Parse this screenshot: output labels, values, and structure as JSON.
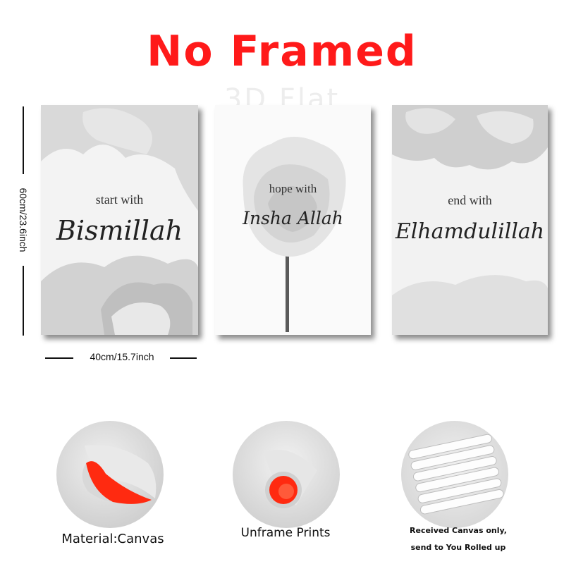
{
  "header": {
    "title": "No Framed",
    "watermark": "3D Flat"
  },
  "colors": {
    "title": "#ff1a1a",
    "canvas_back": "#ff2a10"
  },
  "dimensions": {
    "height": "60cm/23.6inch",
    "width": "40cm/15.7inch"
  },
  "posters": [
    {
      "line1": "start with",
      "line2": "Bismillah"
    },
    {
      "line1": "hope with",
      "line2": "Insha Allah"
    },
    {
      "line1": "end with",
      "line2": "Elhamdulillah"
    }
  ],
  "captions": {
    "material": "Material:Canvas",
    "unframe": "Unframe  Prints",
    "received_line1": "Received Canvas only,",
    "received_line2": "send to You Rolled up"
  }
}
